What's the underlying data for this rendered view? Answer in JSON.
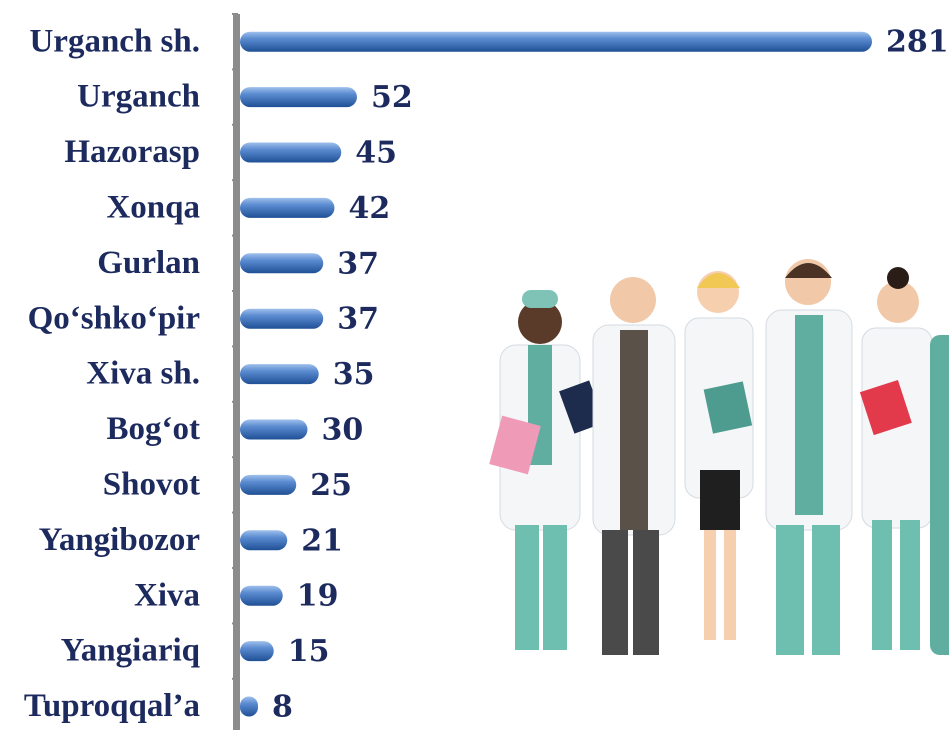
{
  "chart_data": {
    "type": "bar",
    "orientation": "horizontal",
    "categories": [
      "Urganch sh.",
      "Urganch",
      "Hazorasp",
      "Xonqa",
      "Gurlan",
      "Qo‘shko‘pir",
      "Xiva sh.",
      "Bog‘ot",
      "Shovot",
      "Yangibozor",
      "Xiva",
      "Yangiariq",
      "Tuproqqal’a"
    ],
    "values": [
      281,
      52,
      45,
      42,
      37,
      37,
      35,
      30,
      25,
      21,
      19,
      15,
      8
    ],
    "color": "#3f6fb5"
  }
}
